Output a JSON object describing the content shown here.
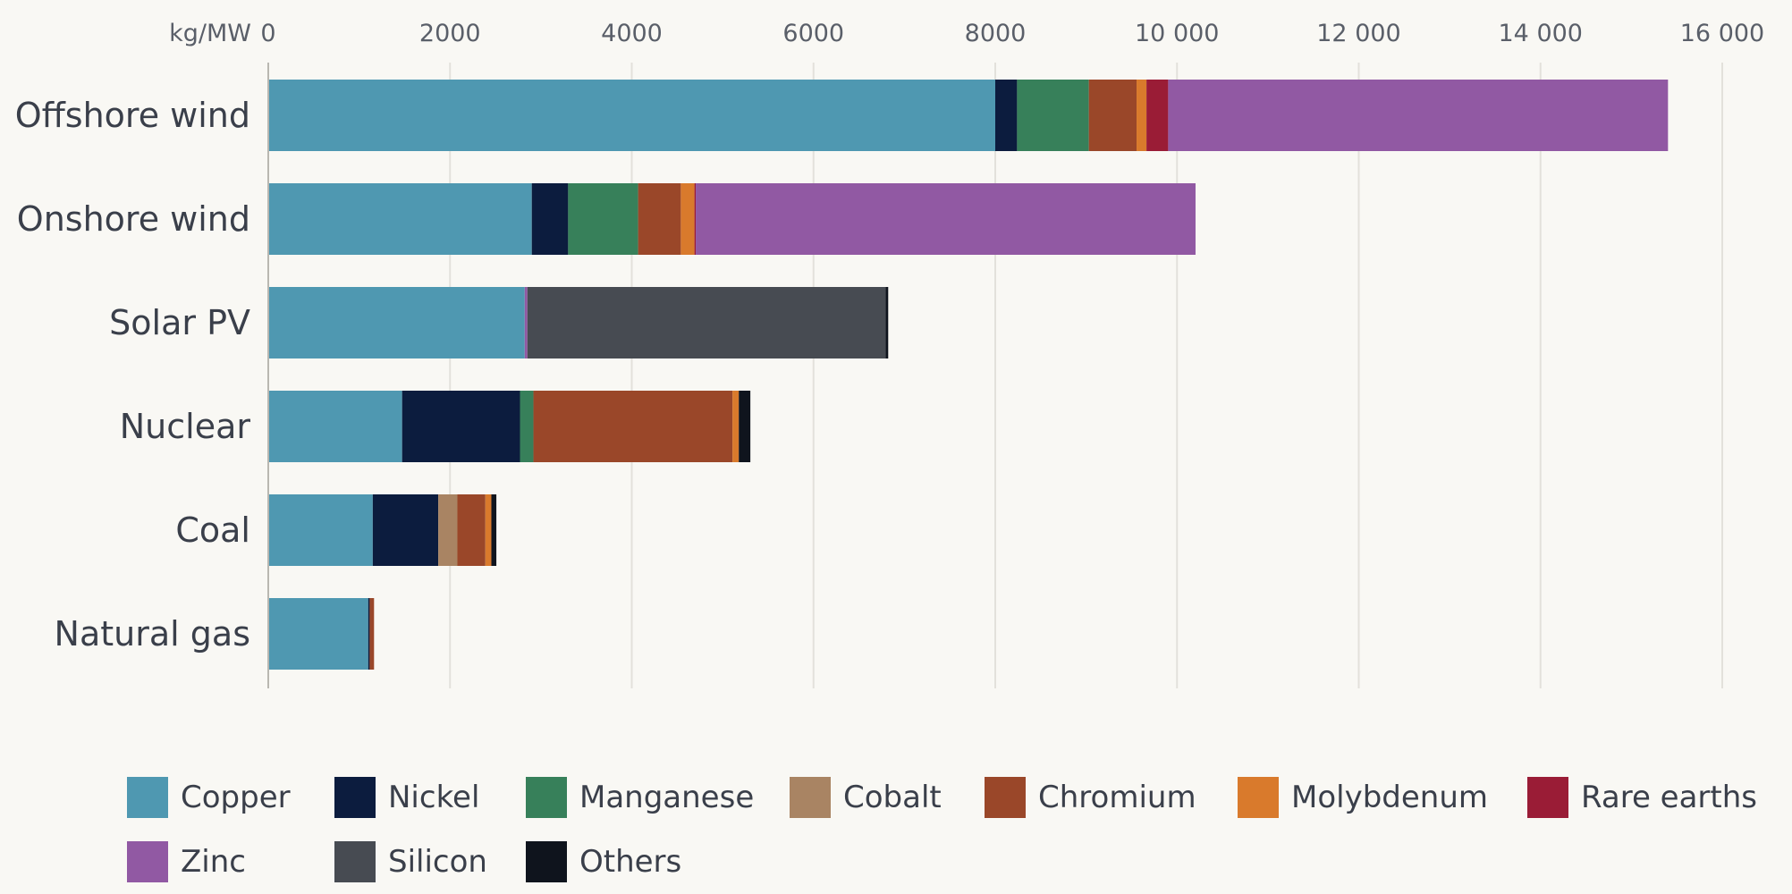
{
  "chart_data": {
    "type": "bar",
    "orientation": "horizontal",
    "stacked": true,
    "title": "",
    "unit_label": "kg/MW",
    "xlim": [
      0,
      16000
    ],
    "xticks": [
      0,
      2000,
      4000,
      6000,
      8000,
      10000,
      12000,
      14000,
      16000
    ],
    "xtick_labels": [
      "0",
      "2000",
      "4000",
      "6000",
      "8000",
      "10 000",
      "12 000",
      "14 000",
      "16 000"
    ],
    "grid": true,
    "legend_position": "bottom",
    "categories": [
      "Offshore wind",
      "Onshore wind",
      "Solar PV",
      "Nuclear",
      "Coal",
      "Natural gas"
    ],
    "series": [
      {
        "name": "Copper",
        "color": "#4f98b1",
        "values": [
          8000,
          2900,
          2822,
          1473,
          1150,
          1100
        ]
      },
      {
        "name": "Nickel",
        "color": "#0c1c3e",
        "values": [
          240,
          400,
          0,
          1297,
          721,
          16
        ]
      },
      {
        "name": "Manganese",
        "color": "#37805a",
        "values": [
          790,
          770,
          0,
          148,
          0,
          0
        ]
      },
      {
        "name": "Cobalt",
        "color": "#a98463",
        "values": [
          0,
          0,
          0,
          0,
          210,
          0
        ]
      },
      {
        "name": "Chromium",
        "color": "#9a4729",
        "values": [
          525,
          470,
          0,
          2190,
          308,
          48
        ]
      },
      {
        "name": "Molybdenum",
        "color": "#d97a2c",
        "values": [
          109,
          150,
          0,
          70,
          66,
          0
        ]
      },
      {
        "name": "Rare earths",
        "color": "#9a1c36",
        "values": [
          239,
          14,
          0,
          0,
          0,
          0
        ]
      },
      {
        "name": "Zinc",
        "color": "#9159a3",
        "values": [
          5500,
          5500,
          30,
          0,
          0,
          0
        ]
      },
      {
        "name": "Silicon",
        "color": "#474b52",
        "values": [
          0,
          0,
          3940,
          0,
          0,
          0
        ]
      },
      {
        "name": "Others",
        "color": "#0f141d",
        "values": [
          0,
          0,
          30,
          127,
          55,
          0
        ]
      }
    ]
  },
  "legend": {
    "rows": [
      [
        "Copper",
        "Nickel",
        "Manganese",
        "Cobalt",
        "Chromium",
        "Molybdenum",
        "Rare earths"
      ],
      [
        "Zinc",
        "Silicon",
        "Others"
      ]
    ]
  }
}
